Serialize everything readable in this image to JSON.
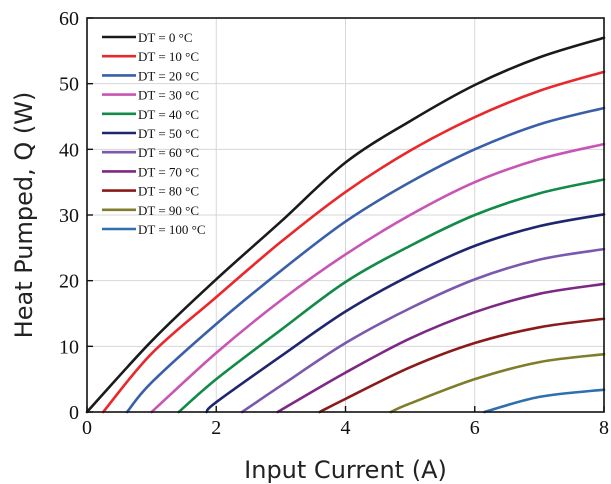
{
  "chart_data": {
    "type": "line",
    "title": "",
    "xlabel": "Input Current (A)",
    "ylabel": "Heat Pumped, Q (W)",
    "xlim": [
      0,
      8
    ],
    "ylim": [
      0,
      60
    ],
    "x_ticks": [
      0,
      2,
      4,
      6,
      8
    ],
    "y_ticks": [
      0,
      10,
      20,
      30,
      40,
      50,
      60
    ],
    "grid": true,
    "legend_position": "top-left",
    "series": [
      {
        "name": "DT = 0 °C",
        "color": "#1a1a1a",
        "points": [
          [
            0,
            0
          ],
          [
            1,
            10.8
          ],
          [
            2,
            20.2
          ],
          [
            3,
            29
          ],
          [
            4,
            38
          ],
          [
            5,
            44.3
          ],
          [
            6,
            49.8
          ],
          [
            7,
            54
          ],
          [
            8,
            57
          ]
        ]
      },
      {
        "name": "DT = 10 °C",
        "color": "#e8282b",
        "points": [
          [
            0.25,
            0
          ],
          [
            1,
            8.9
          ],
          [
            2,
            17.5
          ],
          [
            3,
            25.9
          ],
          [
            4,
            33.5
          ],
          [
            5,
            39.8
          ],
          [
            6,
            44.9
          ],
          [
            7,
            48.9
          ],
          [
            8,
            51.8
          ]
        ]
      },
      {
        "name": "DT = 20 °C",
        "color": "#3a5faa",
        "points": [
          [
            0.62,
            0
          ],
          [
            1,
            4.5
          ],
          [
            2,
            13.4
          ],
          [
            3,
            21.5
          ],
          [
            4,
            29
          ],
          [
            5,
            35
          ],
          [
            6,
            40
          ],
          [
            7,
            43.8
          ],
          [
            8,
            46.3
          ]
        ]
      },
      {
        "name": "DT = 30 °C",
        "color": "#c855b4",
        "points": [
          [
            1,
            0
          ],
          [
            2,
            9
          ],
          [
            3,
            17
          ],
          [
            4,
            24
          ],
          [
            5,
            30
          ],
          [
            6,
            35
          ],
          [
            7,
            38.5
          ],
          [
            8,
            40.8
          ]
        ]
      },
      {
        "name": "DT = 40 °C",
        "color": "#128a48",
        "points": [
          [
            1.42,
            0
          ],
          [
            2,
            5
          ],
          [
            3,
            12.5
          ],
          [
            4,
            19.8
          ],
          [
            5,
            25.3
          ],
          [
            6,
            30
          ],
          [
            7,
            33.3
          ],
          [
            8,
            35.4
          ]
        ]
      },
      {
        "name": "DT = 50 °C",
        "color": "#1f2670",
        "points": [
          [
            1.85,
            0
          ],
          [
            2,
            1.5
          ],
          [
            3,
            8.5
          ],
          [
            4,
            15.3
          ],
          [
            5,
            20.8
          ],
          [
            6,
            25.3
          ],
          [
            7,
            28.3
          ],
          [
            8,
            30.1
          ]
        ]
      },
      {
        "name": "DT = 60 °C",
        "color": "#7a58ad",
        "points": [
          [
            2.4,
            0
          ],
          [
            3,
            4
          ],
          [
            4,
            10.5
          ],
          [
            5,
            15.8
          ],
          [
            6,
            20.2
          ],
          [
            7,
            23.2
          ],
          [
            8,
            24.8
          ]
        ]
      },
      {
        "name": "DT = 70 °C",
        "color": "#7d2884",
        "points": [
          [
            2.95,
            0
          ],
          [
            4,
            6
          ],
          [
            5,
            11.2
          ],
          [
            6,
            15.2
          ],
          [
            7,
            18
          ],
          [
            8,
            19.5
          ]
        ]
      },
      {
        "name": "DT = 80 °C",
        "color": "#8b1a1a",
        "points": [
          [
            3.6,
            0
          ],
          [
            4,
            2
          ],
          [
            5,
            6.8
          ],
          [
            6,
            10.5
          ],
          [
            7,
            12.9
          ],
          [
            8,
            14.2
          ]
        ]
      },
      {
        "name": "DT = 90 °C",
        "color": "#7f7d2b",
        "points": [
          [
            4.7,
            0
          ],
          [
            5,
            1.3
          ],
          [
            6,
            5
          ],
          [
            7,
            7.6
          ],
          [
            8,
            8.8
          ]
        ]
      },
      {
        "name": "DT = 100 °C",
        "color": "#2e6fae",
        "points": [
          [
            6.15,
            0
          ],
          [
            7,
            2.3
          ],
          [
            8,
            3.4
          ]
        ]
      }
    ]
  }
}
